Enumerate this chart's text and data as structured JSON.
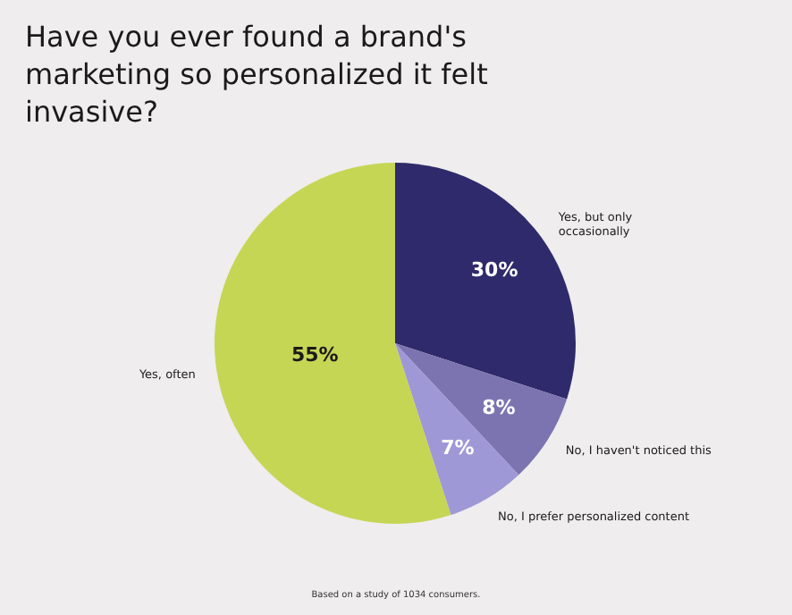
{
  "chart_data": {
    "type": "pie",
    "title": "Have you ever found a brand's marketing so personalized it felt invasive?",
    "categories": [
      "Yes, but only occasionally",
      "No, I haven't noticed this",
      "No, I prefer personalized content",
      "Yes, often"
    ],
    "values": [
      30,
      8,
      7,
      55
    ],
    "value_labels": [
      "30%",
      "8%",
      "7%",
      "55%"
    ],
    "colors": [
      "#2e2a6b",
      "#7b74b0",
      "#9f98d6",
      "#c5d655"
    ],
    "legend": false,
    "annotations": [
      "Based on a study of 1034 consumers."
    ]
  }
}
